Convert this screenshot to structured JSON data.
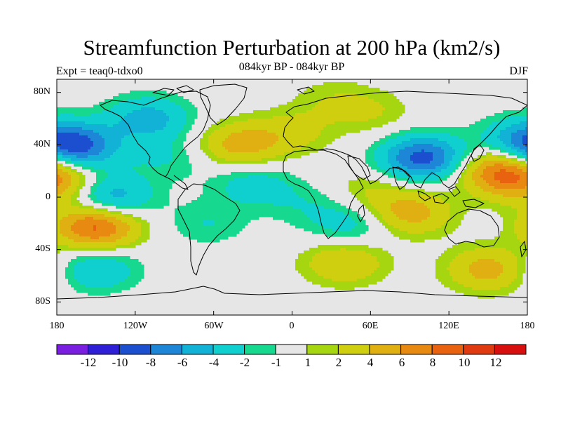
{
  "title": "Streamfunction Perturbation at 200 hPa (km2/s)",
  "subtitle": "084kyr BP - 084kyr BP",
  "left_label": "Expt = teaq0-tdxo0",
  "right_label": "DJF",
  "y_ticks": [
    "80N",
    "40N",
    "0",
    "40S",
    "80S"
  ],
  "x_ticks": [
    "180",
    "120W",
    "60W",
    "0",
    "60E",
    "120E",
    "180"
  ],
  "colorbar": {
    "labels": [
      "-12",
      "-10",
      "-8",
      "-6",
      "-4",
      "-2",
      "-1",
      "1",
      "2",
      "4",
      "6",
      "8",
      "10",
      "12"
    ],
    "colors": [
      "#7a1fe0",
      "#2f1fd6",
      "#1b4fd0",
      "#1d86d6",
      "#12b2d6",
      "#10cfcf",
      "#16d98f",
      "#e6e6e6",
      "#a6d610",
      "#cfcf10",
      "#e0b012",
      "#e88a12",
      "#e8620f",
      "#e03a10",
      "#d80f0f"
    ]
  },
  "chart_data": {
    "type": "map",
    "variable": "Streamfunction Perturbation at 200 hPa",
    "units": "km2/s",
    "season": "DJF",
    "lon_range": [
      -180,
      180
    ],
    "lat_range": [
      -90,
      90
    ],
    "contour_levels": [
      -12,
      -10,
      -8,
      -6,
      -4,
      -2,
      -1,
      1,
      2,
      4,
      6,
      8,
      10,
      12
    ],
    "approx_anomaly_centers": [
      {
        "lon": -165,
        "lat": 38,
        "value": -8
      },
      {
        "lon": -140,
        "lat": 0,
        "value": -6
      },
      {
        "lon": -150,
        "lat": -22,
        "value": 9
      },
      {
        "lon": -110,
        "lat": 60,
        "value": -5
      },
      {
        "lon": -40,
        "lat": 40,
        "value": 5
      },
      {
        "lon": -30,
        "lat": 10,
        "value": -3
      },
      {
        "lon": -150,
        "lat": -55,
        "value": -4
      },
      {
        "lon": 100,
        "lat": 30,
        "value": -9
      },
      {
        "lon": 160,
        "lat": 20,
        "value": 8
      },
      {
        "lon": 90,
        "lat": -12,
        "value": 5
      },
      {
        "lon": 45,
        "lat": -20,
        "value": -3
      },
      {
        "lon": 40,
        "lat": -50,
        "value": 4
      },
      {
        "lon": 150,
        "lat": -55,
        "value": 5
      },
      {
        "lon": 60,
        "lat": 65,
        "value": 2
      },
      {
        "lon": 30,
        "lat": 75,
        "value": 1.5
      },
      {
        "lon": -65,
        "lat": -20,
        "value": -2
      },
      {
        "lon": -95,
        "lat": 30,
        "value": -2
      },
      {
        "lon": -175,
        "lat": 10,
        "value": 4
      },
      {
        "lon": 175,
        "lat": 45,
        "value": -4
      },
      {
        "lon": 10,
        "lat": -5,
        "value": -1.5
      },
      {
        "lon": 0,
        "lat": 50,
        "value": 2.5
      },
      {
        "lon": 60,
        "lat": 5,
        "value": 2
      }
    ]
  }
}
